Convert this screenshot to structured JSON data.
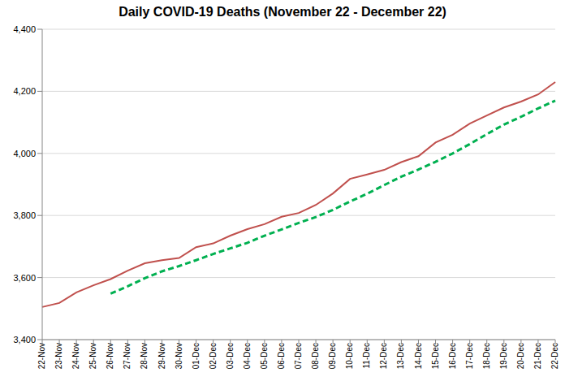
{
  "chart_data": {
    "type": "line",
    "title": "Daily COVID-19 Deaths (November 22 - December 22)",
    "categories": [
      "22-Nov",
      "23-Nov",
      "24-Nov",
      "25-Nov",
      "26-Nov",
      "27-Nov",
      "28-Nov",
      "29-Nov",
      "30-Nov",
      "01-Dec",
      "02-Dec",
      "03-Dec",
      "04-Dec",
      "05-Dec",
      "06-Dec",
      "07-Dec",
      "08-Dec",
      "09-Dec",
      "10-Dec",
      "11-Dec",
      "12-Dec",
      "13-Dec",
      "14-Dec",
      "15-Dec",
      "16-Dec",
      "17-Dec",
      "18-Dec",
      "19-Dec",
      "20-Dec",
      "21-Dec",
      "22-Dec"
    ],
    "series": [
      {
        "color": "#c0504d",
        "line_style": "solid",
        "values": [
          3505,
          3518,
          3552,
          3575,
          3595,
          3622,
          3646,
          3656,
          3663,
          3698,
          3710,
          3735,
          3756,
          3772,
          3796,
          3808,
          3834,
          3871,
          3918,
          3932,
          3947,
          3972,
          3991,
          4035,
          4060,
          4096,
          4122,
          4148,
          4167,
          4190,
          4230
        ]
      },
      {
        "color": "#00b050",
        "line_style": "dashed",
        "values": [
          null,
          null,
          null,
          null,
          3548,
          3572,
          3598,
          3620,
          3637,
          3656,
          3676,
          3694,
          3712,
          3735,
          3755,
          3776,
          3795,
          3818,
          3845,
          3870,
          3898,
          3925,
          3948,
          3973,
          4000,
          4030,
          4062,
          4093,
          4118,
          4145,
          4170
        ]
      }
    ],
    "ylim": [
      3400,
      4400
    ],
    "yticks": [
      {
        "value": 3400,
        "label": "3,400"
      },
      {
        "value": 3600,
        "label": "3,600"
      },
      {
        "value": 3800,
        "label": "3,800"
      },
      {
        "value": 4000,
        "label": "4,000"
      },
      {
        "value": 4200,
        "label": "4,200"
      },
      {
        "value": 4400,
        "label": "4,400"
      }
    ],
    "grid": true
  }
}
